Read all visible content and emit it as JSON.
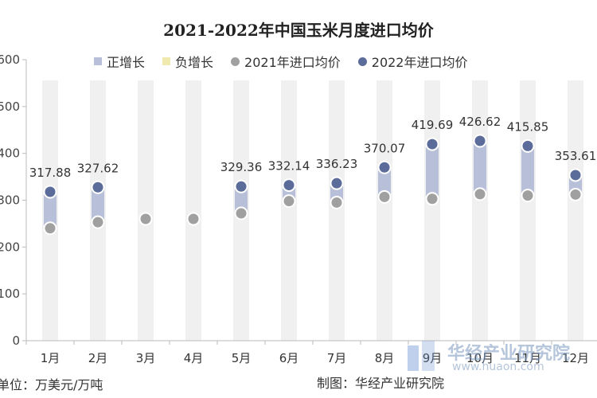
{
  "chart_data": {
    "type": "line",
    "title": "2021-2022年中国玉米月度进口均价",
    "categories": [
      "1月",
      "2月",
      "3月",
      "4月",
      "5月",
      "6月",
      "7月",
      "8月",
      "9月",
      "10月",
      "11月",
      "12月"
    ],
    "series": [
      {
        "name": "2021年进口均价",
        "values": [
          240,
          253,
          260,
          260,
          272,
          298,
          295,
          307,
          303,
          313,
          310,
          312
        ],
        "color": "#a0a0a0"
      },
      {
        "name": "2022年进口均价",
        "values": [
          317.88,
          327.62,
          null,
          null,
          329.36,
          332.14,
          336.23,
          370.07,
          419.69,
          426.62,
          415.85,
          353.61
        ],
        "color": "#5b6b9a"
      }
    ],
    "data_labels": [
      "317.88",
      "327.62",
      "",
      "",
      "329.36",
      "332.14",
      "336.23",
      "370.07",
      "419.69",
      "426.62",
      "415.85",
      "353.61"
    ],
    "bar_legend": [
      {
        "name": "正增长",
        "color": "#b7c0d8"
      },
      {
        "name": "负增长",
        "color": "#f1eab0"
      }
    ],
    "ylim": [
      0,
      600
    ],
    "yticks": [
      "0",
      "100",
      "200",
      "300",
      "400",
      "500",
      "600"
    ],
    "grid": false,
    "legend_position": "top"
  },
  "unit_label": "单位：万美元/万吨",
  "source_label": "制图：华经产业研究院",
  "watermark": {
    "name": "华经产业研究院",
    "url": "www.huaon.com"
  }
}
